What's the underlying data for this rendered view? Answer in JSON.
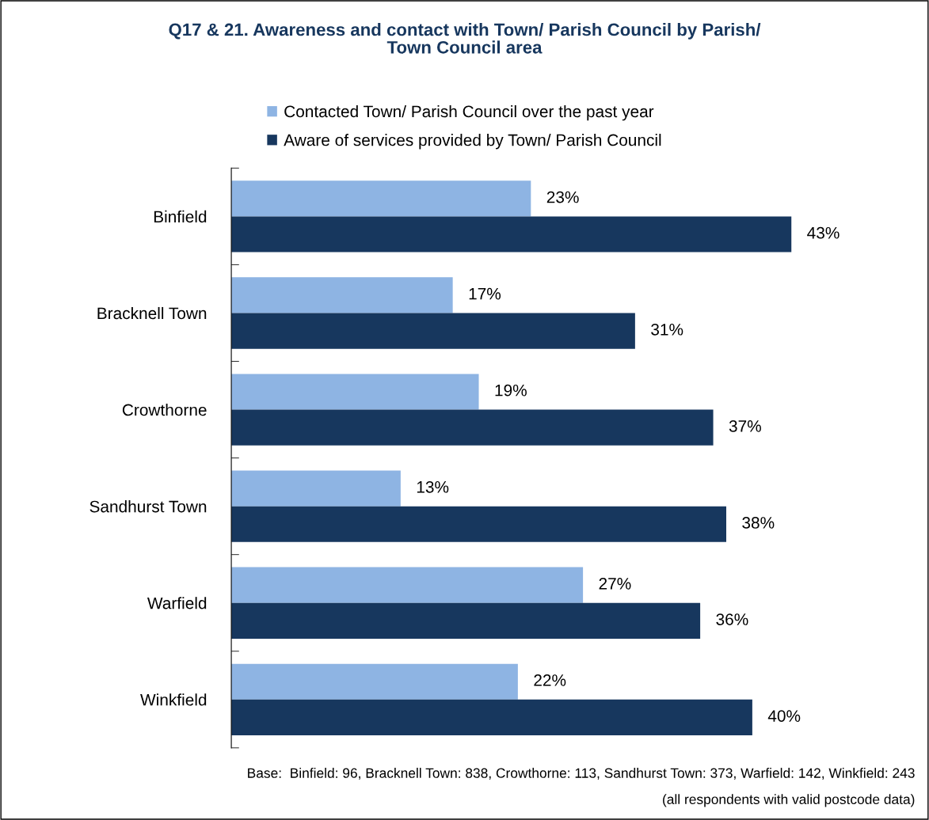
{
  "chart_data": {
    "type": "bar",
    "orientation": "horizontal",
    "title": "Q17 & 21. Awareness and contact with Town/ Parish Council by Parish/\nTown Council area",
    "categories": [
      "Binfield",
      "Bracknell Town",
      "Crowthorne",
      "Sandhurst Town",
      "Warfield",
      "Winkfield"
    ],
    "series": [
      {
        "name": "Contacted Town/ Parish Council over the past year",
        "color": "#8eb4e3",
        "values": [
          23,
          17,
          19,
          13,
          27,
          22
        ],
        "value_labels": [
          "23%",
          "17%",
          "19%",
          "13%",
          "27%",
          "22%"
        ]
      },
      {
        "name": "Aware of services provided by Town/ Parish Council",
        "color": "#17375e",
        "values": [
          43,
          31,
          37,
          38,
          36,
          40
        ],
        "value_labels": [
          "43%",
          "31%",
          "37%",
          "38%",
          "36%",
          "40%"
        ]
      }
    ],
    "tick_labels": "y",
    "grid": false,
    "legend": "top",
    "annotations": [
      "Base:  Binfield: 96, Bracknell Town: 838, Crowthorne: 113, Sandhurst Town: 373, Warfield: 142, Winkfield: 243",
      "(all respondents with valid postcode data)"
    ]
  }
}
